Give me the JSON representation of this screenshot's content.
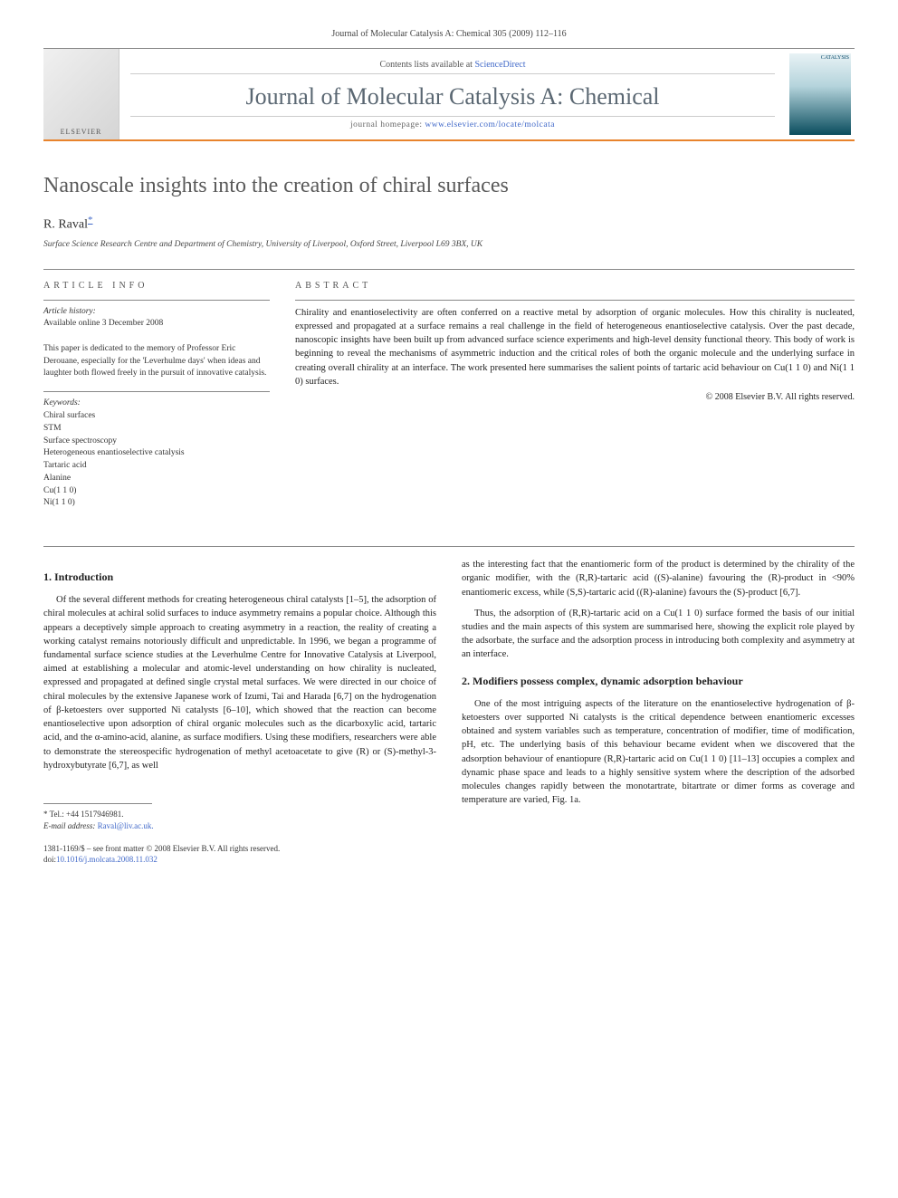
{
  "header": {
    "citation": "Journal of Molecular Catalysis A: Chemical 305 (2009) 112–116",
    "contents_prefix": "Contents lists available at ",
    "contents_link": "ScienceDirect",
    "journal_name": "Journal of Molecular Catalysis A: Chemical",
    "homepage_prefix": "journal homepage: ",
    "homepage_url": "www.elsevier.com/locate/molcata",
    "publisher_logo": "ELSEVIER",
    "cover_label": "CATALYSIS"
  },
  "article": {
    "title": "Nanoscale insights into the creation of chiral surfaces",
    "author": "R. Raval",
    "author_marker": "*",
    "affiliation": "Surface Science Research Centre and Department of Chemistry, University of Liverpool, Oxford Street, Liverpool L69 3BX, UK"
  },
  "info": {
    "label": "ARTICLE INFO",
    "history_heading": "Article history:",
    "history_line": "Available online 3 December 2008",
    "dedication": "This paper is dedicated to the memory of Professor Eric Derouane, especially for the 'Leverhulme days' when ideas and laughter both flowed freely in the pursuit of innovative catalysis.",
    "keywords_heading": "Keywords:",
    "keywords": [
      "Chiral surfaces",
      "STM",
      "Surface spectroscopy",
      "Heterogeneous enantioselective catalysis",
      "Tartaric acid",
      "Alanine",
      "Cu(1 1 0)",
      "Ni(1 1 0)"
    ]
  },
  "abstract": {
    "label": "ABSTRACT",
    "text": "Chirality and enantioselectivity are often conferred on a reactive metal by adsorption of organic molecules. How this chirality is nucleated, expressed and propagated at a surface remains a real challenge in the field of heterogeneous enantioselective catalysis. Over the past decade, nanoscopic insights have been built up from advanced surface science experiments and high-level density functional theory. This body of work is beginning to reveal the mechanisms of asymmetric induction and the critical roles of both the organic molecule and the underlying surface in creating overall chirality at an interface. The work presented here summarises the salient points of tartaric acid behaviour on Cu(1 1 0) and Ni(1 1 0) surfaces.",
    "copyright": "© 2008 Elsevier B.V. All rights reserved."
  },
  "body": {
    "section1_title": "1.  Introduction",
    "section1_p1": "Of the several different methods for creating heterogeneous chiral catalysts [1–5], the adsorption of chiral molecules at achiral solid surfaces to induce asymmetry remains a popular choice. Although this appears a deceptively simple approach to creating asymmetry in a reaction, the reality of creating a working catalyst remains notoriously difficult and unpredictable. In 1996, we began a programme of fundamental surface science studies at the Leverhulme Centre for Innovative Catalysis at Liverpool, aimed at establishing a molecular and atomic-level understanding on how chirality is nucleated, expressed and propagated at defined single crystal metal surfaces. We were directed in our choice of chiral molecules by the extensive Japanese work of Izumi, Tai and Harada [6,7] on the hydrogenation of β-ketoesters over supported Ni catalysts [6–10], which showed that the reaction can become enantioselective upon adsorption of chiral organic molecules such as the dicarboxylic acid, tartaric acid, and the α-amino-acid, alanine, as surface modifiers. Using these modifiers, researchers were able to demonstrate the stereospecific hydrogenation of methyl acetoacetate to give (R) or (S)-methyl-3-hydroxybutyrate [6,7], as well",
    "right_p1": "as the interesting fact that the enantiomeric form of the product is determined by the chirality of the organic modifier, with the (R,R)-tartaric acid ((S)-alanine) favouring the (R)-product in <90% enantiomeric excess, while (S,S)-tartaric acid ((R)-alanine) favours the (S)-product [6,7].",
    "right_p2": "Thus, the adsorption of (R,R)-tartaric acid on a Cu(1 1 0) surface formed the basis of our initial studies and the main aspects of this system are summarised here, showing the explicit role played by the adsorbate, the surface and the adsorption process in introducing both complexity and asymmetry at an interface.",
    "section2_title": "2.  Modifiers possess complex, dynamic adsorption behaviour",
    "section2_p1": "One of the most intriguing aspects of the literature on the enantioselective hydrogenation of β-ketoesters over supported Ni catalysts is the critical dependence between enantiomeric excesses obtained and system variables such as temperature, concentration of modifier, time of modification, pH, etc. The underlying basis of this behaviour became evident when we discovered that the adsorption behaviour of enantiopure (R,R)-tartaric acid on Cu(1 1 0) [11–13] occupies a complex and dynamic phase space and leads to a highly sensitive system where the description of the adsorbed molecules changes rapidly between the monotartrate, bitartrate or dimer forms as coverage and temperature are varied, Fig. 1a."
  },
  "footer": {
    "tel_label": "* Tel.: +44 1517946981.",
    "email_label": "E-mail address:",
    "email": "Raval@liv.ac.uk.",
    "front_matter": "1381-1169/$ – see front matter © 2008 Elsevier B.V. All rights reserved.",
    "doi_label": "doi:",
    "doi": "10.1016/j.molcata.2008.11.032"
  },
  "refs": {
    "r1_5": "[1–5]",
    "r6_7": "[6,7]",
    "r6_10": "[6–10]",
    "r11_13": "[11–13]",
    "fig1a": "Fig. 1"
  }
}
